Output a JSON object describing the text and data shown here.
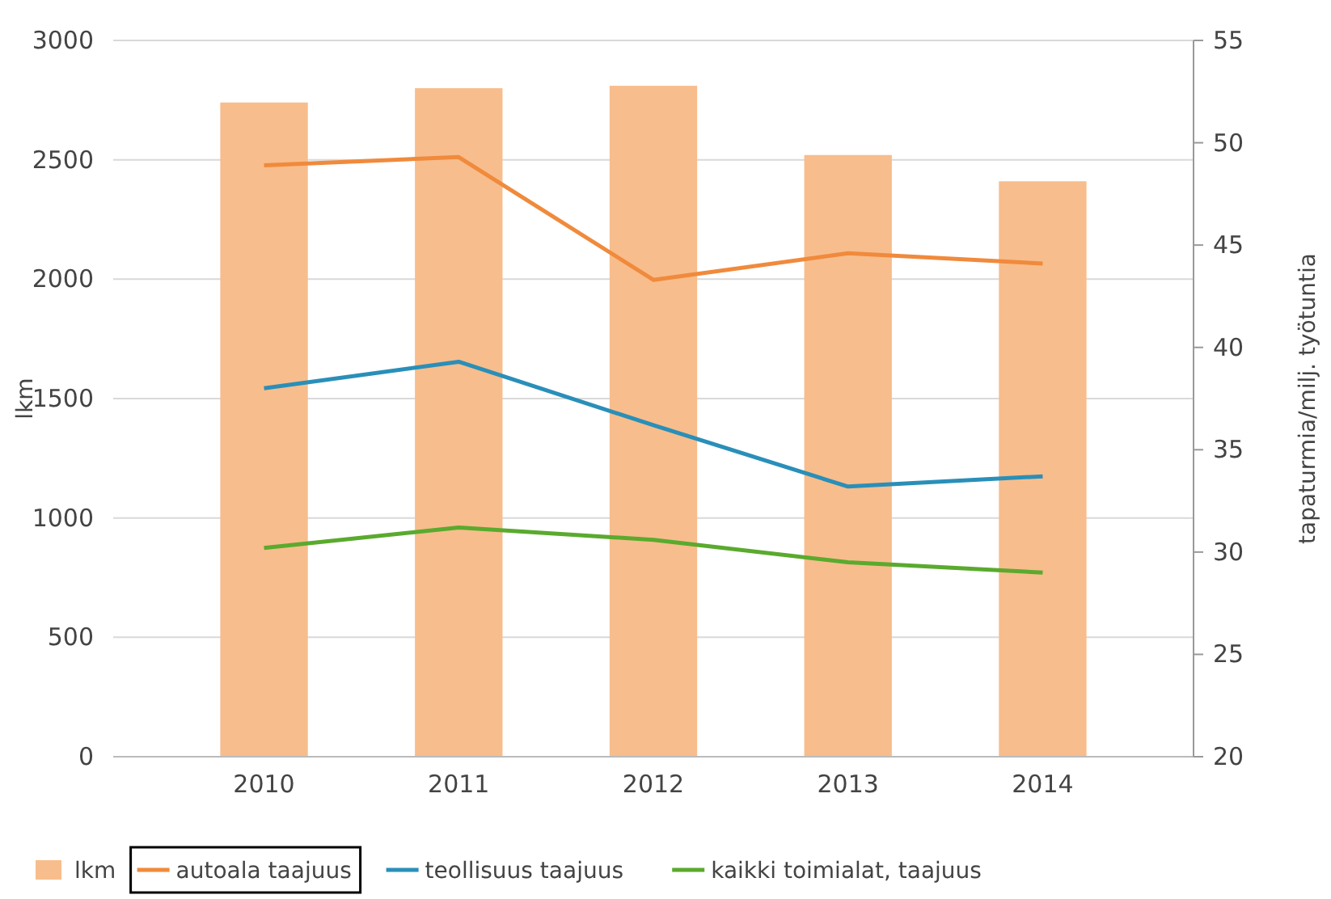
{
  "chart_data": {
    "type": "bar",
    "categories": [
      "2010",
      "2011",
      "2012",
      "2013",
      "2014"
    ],
    "ylabel": "lkm",
    "y2label": "tapaturmia/milj. työtuntia",
    "series": [
      {
        "name": "lkm",
        "color": "#f8bd8c",
        "values": [
          2740,
          2800,
          2810,
          2520,
          2410
        ]
      },
      {
        "name": "autoala taajuus",
        "type": "line",
        "axis": "y2",
        "color": "#f08a3c",
        "values": [
          48.9,
          49.3,
          43.3,
          44.6,
          44.1
        ]
      },
      {
        "name": "teollisuus taajuus",
        "type": "line",
        "axis": "y2",
        "color": "#2a8fb8",
        "values": [
          38.0,
          39.3,
          36.2,
          33.2,
          33.7
        ]
      },
      {
        "name": "kaikki toimialat, taajuus",
        "type": "line",
        "axis": "y2",
        "color": "#5aaa2e",
        "values": [
          30.2,
          31.2,
          30.6,
          29.5,
          29.0
        ]
      }
    ],
    "ylim": [
      0,
      3000
    ],
    "yticks": [
      0,
      500,
      1000,
      1500,
      2000,
      2500,
      3000
    ],
    "y2lim": [
      20,
      55
    ],
    "y2ticks": [
      20,
      25,
      30,
      35,
      40,
      45,
      50,
      55
    ],
    "grid": "y",
    "legend": "bottom",
    "marker": "none",
    "line_style": "solid"
  }
}
